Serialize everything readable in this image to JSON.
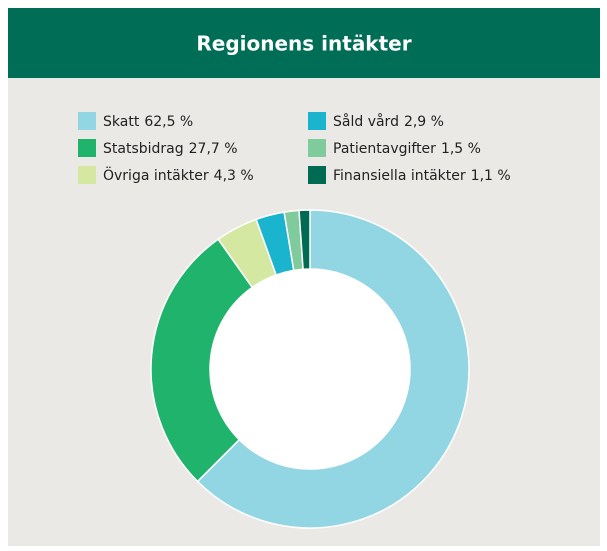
{
  "chart_data": {
    "type": "donut",
    "title": "Regionens intäkter",
    "categories": [
      "Skatt",
      "Statsbidrag",
      "Övriga intäkter",
      "Såld vård",
      "Patientavgifter",
      "Finansiella intäkter"
    ],
    "values": [
      62.5,
      27.7,
      4.3,
      2.9,
      1.5,
      1.1
    ],
    "value_labels": [
      "62,5 %",
      "27,7 %",
      "4,3 %",
      "2,9 %",
      "1,5 %",
      "1,1 %"
    ],
    "colors": [
      "#93d6e3",
      "#1fb36c",
      "#d4e8a2",
      "#1ab4cf",
      "#7fcb9c",
      "#006b53"
    ],
    "legend": "top"
  }
}
